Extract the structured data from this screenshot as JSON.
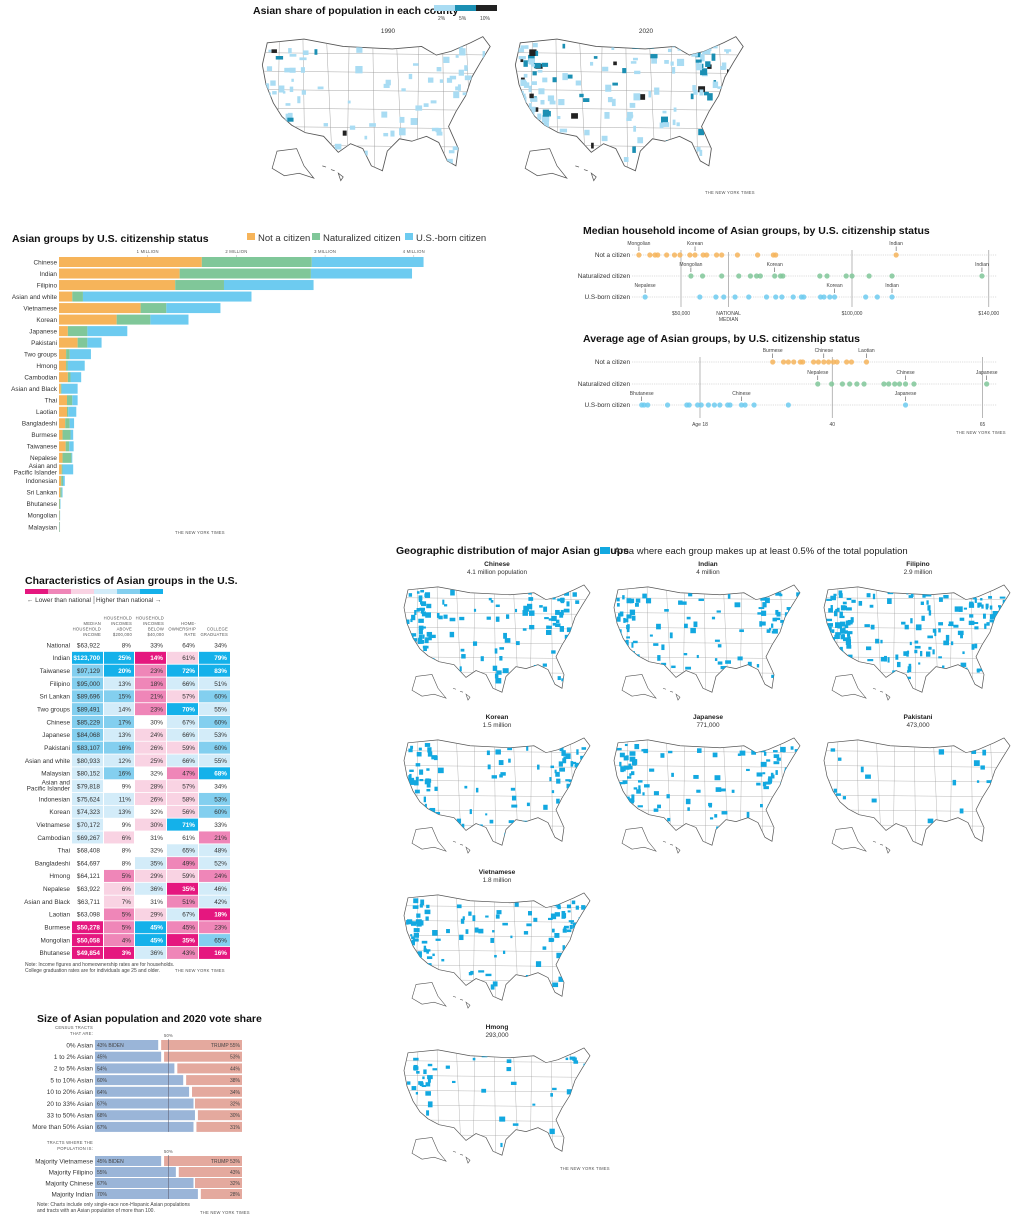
{
  "credit": "THE NEW YORK TIMES",
  "county_maps": {
    "title": "Asian share of population in each county",
    "legend": [
      {
        "label": "2%",
        "color": "#a9dcf3"
      },
      {
        "label": "5%",
        "color": "#1b8fb3"
      },
      {
        "label": "10%",
        "color": "#222222"
      }
    ],
    "maps": [
      {
        "year": "1990"
      },
      {
        "year": "2020"
      }
    ]
  },
  "geo": {
    "title": "Geographic distribution of major Asian groups",
    "legend_label": "Area where each group makes up at least 0.5% of the total population",
    "color": "#12a8e0",
    "maps": [
      {
        "group": "Chinese",
        "population": "4.1 million population"
      },
      {
        "group": "Indian",
        "population": "4 million"
      },
      {
        "group": "Filipino",
        "population": "2.9 million"
      },
      {
        "group": "Korean",
        "population": "1.5 million"
      },
      {
        "group": "Japanese",
        "population": "771,000"
      },
      {
        "group": "Pakistani",
        "population": "473,000"
      },
      {
        "group": "Vietnamese",
        "population": "1.8 million"
      },
      {
        "group": "Hmong",
        "population": "293,000"
      }
    ]
  },
  "chart_data": [
    {
      "type": "bar",
      "title": "Asian groups by U.S. citizenship status",
      "orientation": "horizontal-stacked",
      "xlim": [
        0,
        4.1
      ],
      "ticks": [
        {
          "value": 1,
          "label": "1 MILLION"
        },
        {
          "value": 2,
          "label": "2 MILLION"
        },
        {
          "value": 3,
          "label": "3 MILLION"
        },
        {
          "value": 4,
          "label": "4 MILLION"
        }
      ],
      "legend_position": "top",
      "categories": [
        "Chinese",
        "Indian",
        "Filipino",
        "Asian and white",
        "Vietnamese",
        "Korean",
        "Japanese",
        "Pakistani",
        "Two groups",
        "Hmong",
        "Cambodian",
        "Asian and Black",
        "Thai",
        "Laotian",
        "Bangladeshi",
        "Burmese",
        "Taiwanese",
        "Nepalese",
        "Asian and Pacific Islander",
        "Indonesian",
        "Sri Lankan",
        "Bhutanese",
        "Mongolian",
        "Malaysian"
      ],
      "series": [
        {
          "name": "Not a citizen",
          "color": "#f6b45a",
          "values": [
            1.61,
            1.36,
            1.31,
            0.15,
            0.92,
            0.65,
            0.1,
            0.21,
            0.08,
            0.08,
            0.1,
            0.02,
            0.09,
            0.09,
            0.07,
            0.04,
            0.075,
            0.04,
            0.03,
            0.025,
            0.015,
            0.003,
            0.005,
            0.004
          ]
        },
        {
          "name": "Naturalized citizen",
          "color": "#80c799",
          "values": [
            1.24,
            1.48,
            0.55,
            0.12,
            0.29,
            0.38,
            0.22,
            0.11,
            0.04,
            0.02,
            0.03,
            0.01,
            0.06,
            0.015,
            0.05,
            0.09,
            0.04,
            0.1,
            0.01,
            0.02,
            0.015,
            0.01,
            0.003,
            0.003
          ]
        },
        {
          "name": "U.S.-born citizen",
          "color": "#6dcbf0",
          "values": [
            1.26,
            1.14,
            1.01,
            1.9,
            0.61,
            0.43,
            0.45,
            0.16,
            0.24,
            0.19,
            0.12,
            0.18,
            0.06,
            0.09,
            0.05,
            0.03,
            0.05,
            0.01,
            0.12,
            0.02,
            0.01,
            0.002,
            0.002,
            0.003
          ]
        }
      ]
    },
    {
      "type": "scatter",
      "title": "Median household income of Asian groups, by U.S. citizenship status",
      "xlim": [
        33,
        142
      ],
      "ticks": [
        {
          "value": 50,
          "label": "$50,000"
        },
        {
          "value": 100,
          "label": "$100,000"
        },
        {
          "value": 140,
          "label": "$140,000"
        }
      ],
      "reference": {
        "value": 63.922,
        "label": "NATIONAL MEDIAN"
      },
      "series": [
        {
          "name": "Not a citizen",
          "color": "#f6b45a",
          "values": [
            37.7,
            40.9,
            42.4,
            43.2,
            45.8,
            48.1,
            49.7,
            52.6,
            54.1,
            56.5,
            57.5,
            60.4,
            61.9,
            66.5,
            72.4,
            77.0,
            77.7,
            112.9
          ],
          "annotations": [
            {
              "label": "Mongolian",
              "value": 37.7
            },
            {
              "label": "Korean",
              "value": 54.1
            },
            {
              "label": "Indian",
              "value": 112.9
            }
          ]
        },
        {
          "name": "Naturalized citizen",
          "color": "#80c799",
          "values": [
            52.9,
            56.3,
            61.9,
            66.9,
            70.3,
            72.1,
            73.2,
            77.4,
            79.1,
            79.8,
            90.6,
            92.7,
            98.3,
            100,
            105,
            111.7,
            138
          ],
          "annotations": [
            {
              "label": "Mongolian",
              "value": 52.9
            },
            {
              "label": "Korean",
              "value": 77.4
            },
            {
              "label": "Indian",
              "value": 138
            }
          ]
        },
        {
          "name": "U.S-born citizen",
          "color": "#6dcbf0",
          "values": [
            39.5,
            55.5,
            60.2,
            62.5,
            65.8,
            69.8,
            75,
            77.7,
            79.5,
            82.8,
            85.2,
            85.9,
            90.8,
            91.8,
            93.5,
            94.9,
            104,
            107.4,
            111.7
          ],
          "annotations": [
            {
              "label": "Nepalese",
              "value": 39.5
            },
            {
              "label": "Korean",
              "value": 94.9
            },
            {
              "label": "Indian",
              "value": 111.7
            }
          ]
        }
      ]
    },
    {
      "type": "scatter",
      "title": "Average age of Asian groups, by U.S. citizenship status",
      "xlim": [
        6,
        67
      ],
      "ticks": [
        {
          "value": 18,
          "label": "Age 18"
        },
        {
          "value": 40,
          "label": "40"
        },
        {
          "value": 65,
          "label": "65"
        }
      ],
      "series": [
        {
          "name": "Not a citizen",
          "color": "#f6b45a",
          "values": [
            30.1,
            31.9,
            32.7,
            33.6,
            34.7,
            35.1,
            36.9,
            37.7,
            38.6,
            39.4,
            40.2,
            40.8,
            42.4,
            43.2,
            45.7
          ],
          "annotations": [
            {
              "label": "Burmese",
              "value": 30.1
            },
            {
              "label": "Chinese",
              "value": 38.6
            },
            {
              "label": "Laotian",
              "value": 45.7
            }
          ]
        },
        {
          "name": "Naturalized citizen",
          "color": "#80c799",
          "values": [
            37.6,
            39.9,
            41.7,
            42.9,
            44.1,
            45.3,
            48.6,
            49.4,
            50.4,
            51.2,
            52.2,
            53.6,
            65.7
          ],
          "annotations": [
            {
              "label": "Nepalese",
              "value": 37.6
            },
            {
              "label": "Chinese",
              "value": 52.2
            },
            {
              "label": "Japanese",
              "value": 65.7
            }
          ]
        },
        {
          "name": "U.S-born citizen",
          "color": "#6dcbf0",
          "values": [
            8.3,
            8.7,
            9.3,
            12.6,
            15.8,
            16.2,
            17.6,
            18.2,
            19.4,
            20.4,
            21.3,
            22.6,
            23,
            24.9,
            25.5,
            27,
            32.7,
            52.2
          ],
          "annotations": [
            {
              "label": "Bhutanese",
              "value": 8.3
            },
            {
              "label": "Chinese",
              "value": 24.9
            },
            {
              "label": "Japanese",
              "value": 52.2
            }
          ]
        }
      ]
    },
    {
      "type": "table",
      "title": "Characteristics of Asian groups in the U.S.",
      "legend": {
        "lower": "← Lower than national",
        "higher": "Higher than national →",
        "colors": {
          "-3": "#e5177f",
          "-2": "#ef86b8",
          "-1": "#f9d3e3",
          "0": "#ffffff",
          "1": "#d3ecf9",
          "2": "#83cfef",
          "3": "#14b1ea"
        }
      },
      "columns": [
        "MEDIAN HOUSEHOLD INCOME",
        "HOUSEHOLD INCOMES ABOVE $200,000",
        "HOUSEHOLD INCOMES BELOW $40,000",
        "HOME-OWNERSHIP RATE",
        "COLLEGE GRADUATES"
      ],
      "rows": [
        {
          "group": "National",
          "values": [
            "$63,922",
            "8%",
            "33%",
            "64%",
            "34%"
          ],
          "levels": [
            0,
            0,
            0,
            0,
            0
          ]
        },
        {
          "group": "Indian",
          "values": [
            "$123,700",
            "25%",
            "14%",
            "61%",
            "79%"
          ],
          "levels": [
            3,
            3,
            -3,
            -1,
            3
          ]
        },
        {
          "group": "Taiwanese",
          "values": [
            "$97,129",
            "20%",
            "23%",
            "72%",
            "83%"
          ],
          "levels": [
            2,
            3,
            -2,
            3,
            3
          ]
        },
        {
          "group": "Filipino",
          "values": [
            "$95,000",
            "13%",
            "18%",
            "66%",
            "51%"
          ],
          "levels": [
            2,
            1,
            -2,
            1,
            1
          ]
        },
        {
          "group": "Sri Lankan",
          "values": [
            "$89,696",
            "15%",
            "21%",
            "57%",
            "60%"
          ],
          "levels": [
            2,
            2,
            -2,
            -1,
            2
          ]
        },
        {
          "group": "Two  groups",
          "values": [
            "$89,491",
            "14%",
            "23%",
            "70%",
            "55%"
          ],
          "levels": [
            2,
            1,
            -2,
            3,
            1
          ]
        },
        {
          "group": "Chinese",
          "values": [
            "$85,229",
            "17%",
            "30%",
            "67%",
            "60%"
          ],
          "levels": [
            2,
            2,
            0,
            1,
            2
          ]
        },
        {
          "group": "Japanese",
          "values": [
            "$84,068",
            "13%",
            "24%",
            "66%",
            "53%"
          ],
          "levels": [
            2,
            1,
            -1,
            1,
            1
          ]
        },
        {
          "group": "Pakistani",
          "values": [
            "$83,107",
            "16%",
            "26%",
            "59%",
            "60%"
          ],
          "levels": [
            2,
            2,
            -1,
            -1,
            2
          ]
        },
        {
          "group": "Asian and white",
          "values": [
            "$80,933",
            "12%",
            "25%",
            "66%",
            "55%"
          ],
          "levels": [
            1,
            1,
            -1,
            1,
            1
          ]
        },
        {
          "group": "Malaysian",
          "values": [
            "$80,152",
            "16%",
            "32%",
            "47%",
            "68%"
          ],
          "levels": [
            1,
            2,
            0,
            -2,
            3
          ]
        },
        {
          "group": "Asian and Pacific Islander",
          "values": [
            "$79,818",
            "9%",
            "28%",
            "57%",
            "34%"
          ],
          "levels": [
            1,
            0,
            -1,
            -1,
            0
          ]
        },
        {
          "group": "Indonesian",
          "values": [
            "$75,624",
            "11%",
            "26%",
            "58%",
            "53%"
          ],
          "levels": [
            1,
            1,
            -1,
            -1,
            2
          ]
        },
        {
          "group": "Korean",
          "values": [
            "$74,323",
            "13%",
            "32%",
            "56%",
            "60%"
          ],
          "levels": [
            1,
            1,
            0,
            -1,
            2
          ]
        },
        {
          "group": "Vietnamese",
          "values": [
            "$70,172",
            "9%",
            "30%",
            "71%",
            "33%"
          ],
          "levels": [
            1,
            0,
            -1,
            3,
            0
          ]
        },
        {
          "group": "Cambodian",
          "values": [
            "$69,267",
            "6%",
            "31%",
            "61%",
            "21%"
          ],
          "levels": [
            1,
            -1,
            0,
            0,
            -2
          ]
        },
        {
          "group": "Thai",
          "values": [
            "$68,408",
            "8%",
            "32%",
            "65%",
            "48%"
          ],
          "levels": [
            0,
            0,
            0,
            1,
            1
          ]
        },
        {
          "group": "Bangladeshi",
          "values": [
            "$64,697",
            "8%",
            "35%",
            "49%",
            "52%"
          ],
          "levels": [
            0,
            0,
            1,
            -2,
            1
          ]
        },
        {
          "group": "Hmong",
          "values": [
            "$64,121",
            "5%",
            "29%",
            "59%",
            "24%"
          ],
          "levels": [
            0,
            -2,
            -1,
            -1,
            -2
          ]
        },
        {
          "group": "Nepalese",
          "values": [
            "$63,922",
            "6%",
            "36%",
            "35%",
            "46%"
          ],
          "levels": [
            0,
            -1,
            1,
            -3,
            1
          ]
        },
        {
          "group": "Asian and Black",
          "values": [
            "$63,711",
            "7%",
            "31%",
            "51%",
            "42%"
          ],
          "levels": [
            0,
            -1,
            0,
            -2,
            1
          ]
        },
        {
          "group": "Laotian",
          "values": [
            "$63,098",
            "5%",
            "29%",
            "67%",
            "18%"
          ],
          "levels": [
            0,
            -2,
            -1,
            1,
            -3
          ]
        },
        {
          "group": "Burmese",
          "values": [
            "$50,278",
            "5%",
            "45%",
            "45%",
            "23%"
          ],
          "levels": [
            -3,
            -2,
            3,
            -2,
            -2
          ]
        },
        {
          "group": "Mongolian",
          "values": [
            "$50,058",
            "4%",
            "45%",
            "35%",
            "65%"
          ],
          "levels": [
            -3,
            -2,
            3,
            -3,
            2
          ]
        },
        {
          "group": "Bhutanese",
          "values": [
            "$49,854",
            "3%",
            "36%",
            "43%",
            "16%"
          ],
          "levels": [
            -3,
            -3,
            1,
            -2,
            -3
          ]
        }
      ],
      "note": [
        "Note: Income figures and homeownership rates are for households.",
        "College graduation rates are for individuals age 25 and older."
      ]
    },
    {
      "type": "bar",
      "title": "Size of Asian population and 2020 vote share",
      "orientation": "horizontal-diverging",
      "xlim": [
        0,
        100
      ],
      "reference": {
        "value": 50,
        "label": "50%"
      },
      "colors": {
        "biden": "#9ab5d8",
        "trump": "#e4a99e"
      },
      "groups": [
        {
          "header": [
            "CENSUS TRACTS",
            "THAT ARE:"
          ],
          "categories": [
            "0% Asian",
            "1 to 2% Asian",
            "2 to 5% Asian",
            "5 to 10% Asian",
            "10 to 20% Asian",
            "20 to 33% Asian",
            "33 to 50% Asian",
            "More than 50% Asian"
          ],
          "biden": [
            43,
            45,
            54,
            60,
            64,
            67,
            68,
            67
          ],
          "trump": [
            55,
            53,
            44,
            38,
            34,
            32,
            30,
            31
          ]
        },
        {
          "header": [
            "TRACTS WHERE THE",
            "POPULATION IS:"
          ],
          "categories": [
            "Majority Vietnamese",
            "Majority Filipino",
            "Majority Chinese",
            "Majority Indian"
          ],
          "biden": [
            45,
            55,
            67,
            70
          ],
          "trump": [
            53,
            43,
            32,
            28
          ]
        }
      ],
      "biden_label": "BIDEN",
      "trump_label": "TRUMP",
      "note": [
        "Note: Charts include only single-race non-Hispanic Asian populations",
        "and tracts with an Asian population of more than 100."
      ]
    }
  ]
}
